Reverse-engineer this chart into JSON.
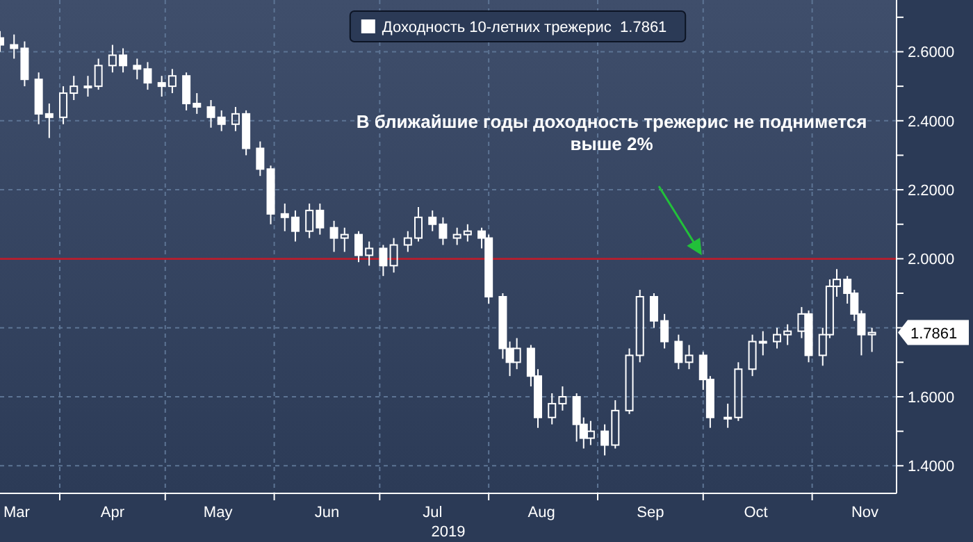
{
  "chart_data": {
    "type": "candlestick",
    "xlabel": "2019",
    "annotations": [
      "В ближайшие годы доходность трежерис не поднимется выше 2%",
      {
        "text": "1.7861",
        "x": "2019-11-18",
        "y": 1.7861
      }
    ],
    "x": [
      "2019-03-15",
      "2019-03-19",
      "2019-03-22",
      "2019-03-26",
      "2019-03-29",
      "2019-04-02",
      "2019-04-05",
      "2019-04-09",
      "2019-04-12",
      "2019-04-16",
      "2019-04-19",
      "2019-04-23",
      "2019-04-26",
      "2019-04-30",
      "2019-05-03",
      "2019-05-07",
      "2019-05-10",
      "2019-05-14",
      "2019-05-17",
      "2019-05-21",
      "2019-05-24",
      "2019-05-28",
      "2019-05-31",
      "2019-06-04",
      "2019-06-07",
      "2019-06-11",
      "2019-06-14",
      "2019-06-18",
      "2019-06-21",
      "2019-06-25",
      "2019-06-28",
      "2019-07-02",
      "2019-07-05",
      "2019-07-09",
      "2019-07-12",
      "2019-07-16",
      "2019-07-19",
      "2019-07-23",
      "2019-07-26",
      "2019-07-30",
      "2019-08-01",
      "2019-08-05",
      "2019-08-07",
      "2019-08-09",
      "2019-08-13",
      "2019-08-15",
      "2019-08-19",
      "2019-08-22",
      "2019-08-26",
      "2019-08-28",
      "2019-08-30",
      "2019-09-03",
      "2019-09-06",
      "2019-09-10",
      "2019-09-13",
      "2019-09-17",
      "2019-09-20",
      "2019-09-24",
      "2019-09-27",
      "2019-10-01",
      "2019-10-03",
      "2019-10-08",
      "2019-10-11",
      "2019-10-15",
      "2019-10-18",
      "2019-10-22",
      "2019-10-25",
      "2019-10-29",
      "2019-10-31",
      "2019-11-04",
      "2019-11-06",
      "2019-11-08",
      "2019-11-11",
      "2019-11-13",
      "2019-11-15",
      "2019-11-18"
    ],
    "series": [
      {
        "name": "Доходность 10-летних трежерис  1.7861",
        "color": "#ffffff",
        "ohlc": [
          [
            2.64,
            2.66,
            2.6,
            2.62
          ],
          [
            2.62,
            2.65,
            2.58,
            2.61
          ],
          [
            2.61,
            2.63,
            2.5,
            2.52
          ],
          [
            2.52,
            2.54,
            2.39,
            2.42
          ],
          [
            2.42,
            2.45,
            2.35,
            2.41
          ],
          [
            2.41,
            2.5,
            2.39,
            2.48
          ],
          [
            2.48,
            2.53,
            2.46,
            2.5
          ],
          [
            2.5,
            2.53,
            2.47,
            2.5
          ],
          [
            2.5,
            2.58,
            2.49,
            2.56
          ],
          [
            2.56,
            2.62,
            2.54,
            2.59
          ],
          [
            2.59,
            2.61,
            2.54,
            2.56
          ],
          [
            2.56,
            2.58,
            2.52,
            2.55
          ],
          [
            2.55,
            2.57,
            2.49,
            2.51
          ],
          [
            2.51,
            2.53,
            2.47,
            2.5
          ],
          [
            2.5,
            2.55,
            2.48,
            2.53
          ],
          [
            2.53,
            2.54,
            2.43,
            2.45
          ],
          [
            2.45,
            2.48,
            2.42,
            2.44
          ],
          [
            2.44,
            2.46,
            2.38,
            2.41
          ],
          [
            2.41,
            2.43,
            2.37,
            2.39
          ],
          [
            2.39,
            2.44,
            2.37,
            2.42
          ],
          [
            2.42,
            2.43,
            2.3,
            2.32
          ],
          [
            2.32,
            2.34,
            2.24,
            2.26
          ],
          [
            2.26,
            2.27,
            2.1,
            2.13
          ],
          [
            2.13,
            2.16,
            2.08,
            2.12
          ],
          [
            2.12,
            2.14,
            2.05,
            2.08
          ],
          [
            2.08,
            2.16,
            2.06,
            2.14
          ],
          [
            2.14,
            2.16,
            2.07,
            2.09
          ],
          [
            2.09,
            2.11,
            2.02,
            2.06
          ],
          [
            2.06,
            2.09,
            2.02,
            2.07
          ],
          [
            2.07,
            2.08,
            1.99,
            2.01
          ],
          [
            2.01,
            2.05,
            1.98,
            2.03
          ],
          [
            2.03,
            2.04,
            1.95,
            1.98
          ],
          [
            1.98,
            2.06,
            1.96,
            2.04
          ],
          [
            2.04,
            2.08,
            2.02,
            2.06
          ],
          [
            2.06,
            2.15,
            2.05,
            2.12
          ],
          [
            2.12,
            2.14,
            2.08,
            2.1
          ],
          [
            2.1,
            2.12,
            2.04,
            2.06
          ],
          [
            2.06,
            2.09,
            2.04,
            2.07
          ],
          [
            2.07,
            2.1,
            2.05,
            2.08
          ],
          [
            2.08,
            2.09,
            2.03,
            2.06
          ],
          [
            2.06,
            2.07,
            1.87,
            1.89
          ],
          [
            1.89,
            1.9,
            1.71,
            1.74
          ],
          [
            1.74,
            1.76,
            1.66,
            1.7
          ],
          [
            1.7,
            1.77,
            1.68,
            1.74
          ],
          [
            1.74,
            1.75,
            1.63,
            1.66
          ],
          [
            1.66,
            1.68,
            1.51,
            1.54
          ],
          [
            1.54,
            1.61,
            1.52,
            1.58
          ],
          [
            1.58,
            1.63,
            1.56,
            1.6
          ],
          [
            1.6,
            1.61,
            1.47,
            1.52
          ],
          [
            1.52,
            1.54,
            1.45,
            1.48
          ],
          [
            1.48,
            1.53,
            1.46,
            1.5
          ],
          [
            1.5,
            1.52,
            1.43,
            1.46
          ],
          [
            1.46,
            1.59,
            1.45,
            1.56
          ],
          [
            1.56,
            1.74,
            1.55,
            1.72
          ],
          [
            1.72,
            1.91,
            1.7,
            1.89
          ],
          [
            1.89,
            1.9,
            1.8,
            1.82
          ],
          [
            1.82,
            1.84,
            1.74,
            1.76
          ],
          [
            1.76,
            1.78,
            1.68,
            1.7
          ],
          [
            1.7,
            1.75,
            1.68,
            1.72
          ],
          [
            1.72,
            1.73,
            1.62,
            1.65
          ],
          [
            1.65,
            1.66,
            1.51,
            1.54
          ],
          [
            1.54,
            1.58,
            1.51,
            1.54
          ],
          [
            1.54,
            1.7,
            1.53,
            1.68
          ],
          [
            1.68,
            1.78,
            1.66,
            1.76
          ],
          [
            1.76,
            1.79,
            1.72,
            1.76
          ],
          [
            1.76,
            1.8,
            1.74,
            1.78
          ],
          [
            1.78,
            1.81,
            1.75,
            1.79
          ],
          [
            1.79,
            1.86,
            1.77,
            1.84
          ],
          [
            1.84,
            1.85,
            1.7,
            1.72
          ],
          [
            1.72,
            1.8,
            1.69,
            1.78
          ],
          [
            1.78,
            1.94,
            1.77,
            1.92
          ],
          [
            1.92,
            1.97,
            1.89,
            1.94
          ],
          [
            1.94,
            1.95,
            1.87,
            1.9
          ],
          [
            1.9,
            1.91,
            1.82,
            1.84
          ],
          [
            1.84,
            1.85,
            1.72,
            1.78
          ],
          [
            1.78,
            1.8,
            1.73,
            1.7861
          ]
        ]
      }
    ],
    "xlim": [
      "2019-03-15",
      "2019-11-25"
    ],
    "xticks": [
      {
        "value": "2019-04-01",
        "label": null
      },
      {
        "value": "2019-05-01",
        "label": null
      },
      {
        "value": "2019-06-01",
        "label": null
      },
      {
        "value": "2019-07-01",
        "label": null
      },
      {
        "value": "2019-08-01",
        "label": null
      },
      {
        "value": "2019-09-01",
        "label": null
      },
      {
        "value": "2019-10-01",
        "label": null
      },
      {
        "value": "2019-11-01",
        "label": null
      },
      {
        "value": "2019-03-19",
        "label": "Mar"
      },
      {
        "value": "2019-04-16",
        "label": "Apr"
      },
      {
        "value": "2019-05-16",
        "label": "May"
      },
      {
        "value": "2019-06-16",
        "label": "Jun"
      },
      {
        "value": "2019-07-16",
        "label": "Jul"
      },
      {
        "value": "2019-08-16",
        "label": "Aug"
      },
      {
        "value": "2019-09-16",
        "label": "Sep"
      },
      {
        "value": "2019-10-16",
        "label": "Oct"
      },
      {
        "value": "2019-11-16",
        "label": "Nov"
      }
    ],
    "ylim": [
      1.32,
      2.75
    ],
    "yticks": [
      {
        "value": 1.4,
        "label": "1.4000"
      },
      {
        "value": 1.6,
        "label": "1.6000"
      },
      {
        "value": 1.8,
        "label": null
      },
      {
        "value": 2.0,
        "label": "2.0000"
      },
      {
        "value": 2.2,
        "label": "2.2000"
      },
      {
        "value": 2.4,
        "label": "2.4000"
      },
      {
        "value": 2.6,
        "label": "2.6000"
      },
      {
        "value": 1.5,
        "label": null
      },
      {
        "value": 1.7,
        "label": null
      },
      {
        "value": 1.9,
        "label": null
      },
      {
        "value": 2.1,
        "label": null
      },
      {
        "value": 2.3,
        "label": null
      },
      {
        "value": 2.5,
        "label": null
      },
      {
        "value": 2.7,
        "label": null
      }
    ],
    "ref_lines": [
      {
        "axis": "y",
        "value": 2.0,
        "color": "#b02030"
      }
    ],
    "grid": true,
    "legend": "top"
  }
}
